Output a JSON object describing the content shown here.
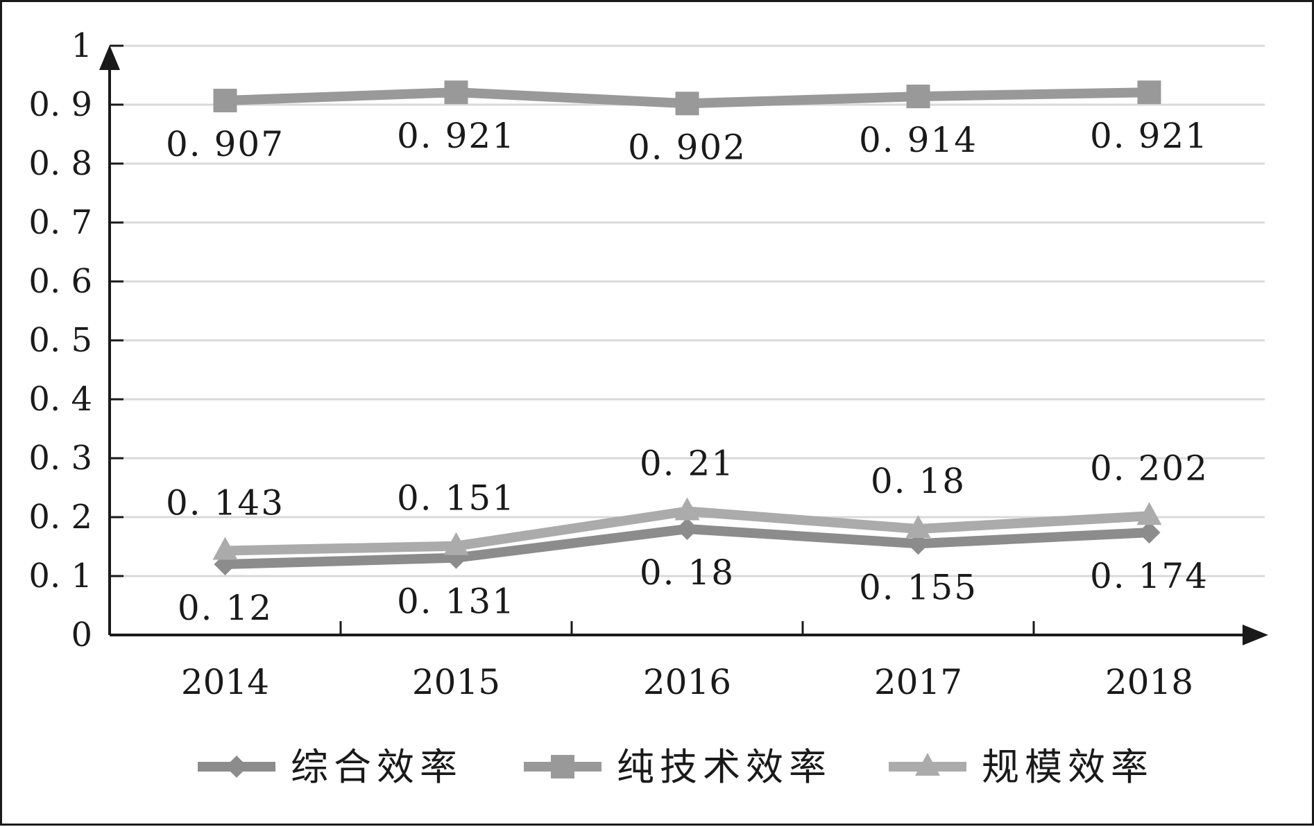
{
  "chart_data": {
    "type": "line",
    "title": "",
    "xlabel": "",
    "ylabel": "",
    "categories": [
      "2014",
      "2015",
      "2016",
      "2017",
      "2018"
    ],
    "ylim": [
      0,
      1
    ],
    "y_ticks": [
      "0",
      "0. 1",
      "0. 2",
      "0. 3",
      "0. 4",
      "0. 5",
      "0. 6",
      "0. 7",
      "0. 8",
      "0. 9",
      "1"
    ],
    "grid": true,
    "legend_position": "bottom",
    "series": [
      {
        "name": "综合效率",
        "marker": "diamond",
        "color": "#8c8c8c",
        "values": [
          0.12,
          0.131,
          0.18,
          0.155,
          0.174
        ],
        "labels": [
          "0. 12",
          "0. 131",
          "0. 18",
          "0. 155",
          "0. 174"
        ],
        "label_position": "below"
      },
      {
        "name": "纯技术效率",
        "marker": "square",
        "color": "#999999",
        "values": [
          0.907,
          0.921,
          0.902,
          0.914,
          0.921
        ],
        "labels": [
          "0. 907",
          "0. 921",
          "0. 902",
          "0. 914",
          "0. 921"
        ],
        "label_position": "below"
      },
      {
        "name": "规模效率",
        "marker": "triangle",
        "color": "#ababab",
        "values": [
          0.143,
          0.151,
          0.21,
          0.18,
          0.202
        ],
        "labels": [
          "0. 143",
          "0. 151",
          "0. 21",
          "0. 18",
          "0. 202"
        ],
        "label_position": "above"
      }
    ]
  }
}
